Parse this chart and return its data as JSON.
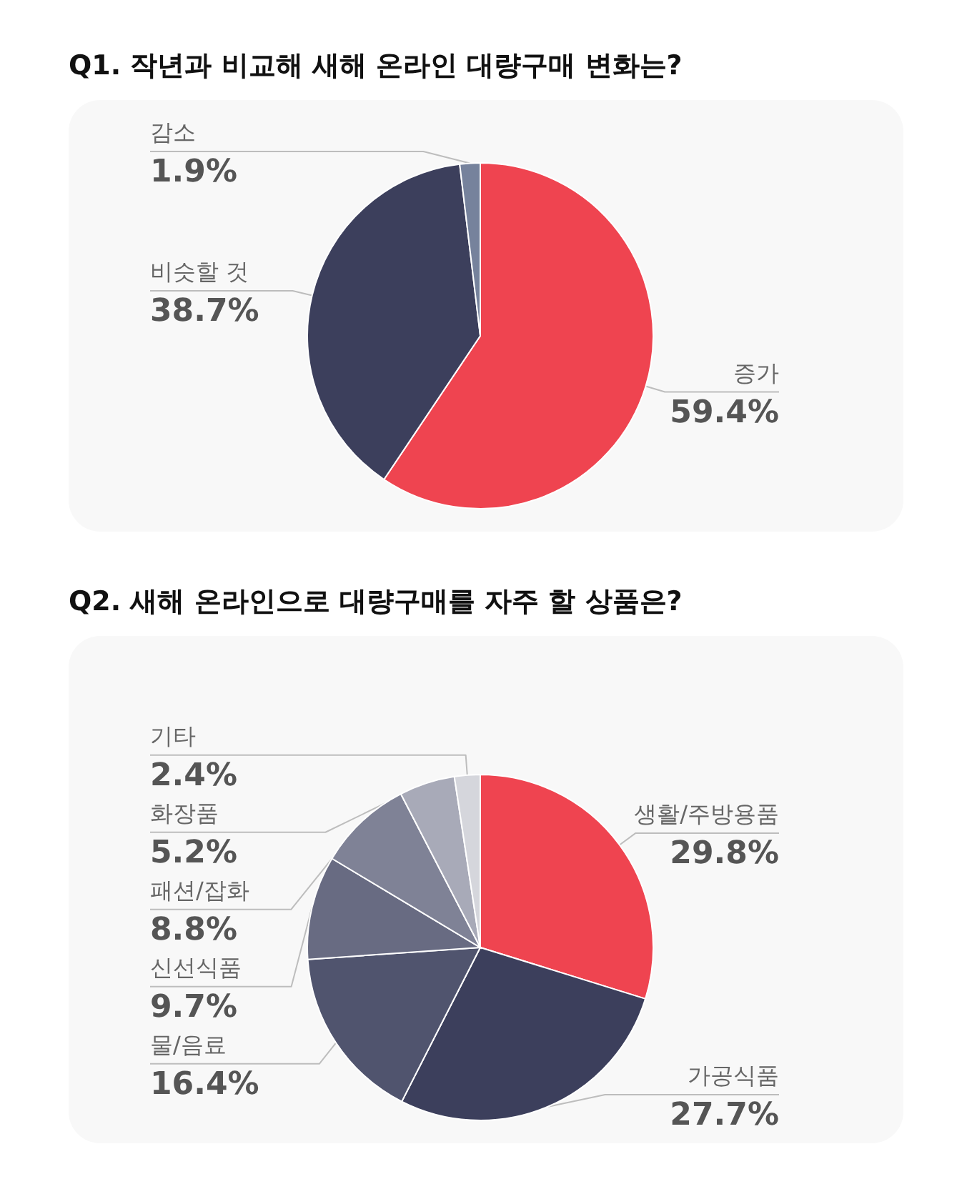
{
  "chart_data": [
    {
      "type": "pie",
      "title": "Q1. 작년과 비교해 새해 온라인 대량구매 변화는?",
      "categories": [
        "증가",
        "비슷할 것",
        "감소"
      ],
      "values": [
        59.4,
        38.7,
        1.9
      ],
      "value_labels": [
        "59.4%",
        "38.7%",
        "1.9%"
      ],
      "colors": [
        "#ef4450",
        "#3c3f5c",
        "#76829c"
      ]
    },
    {
      "type": "pie",
      "title": "Q2. 새해 온라인으로 대량구매를 자주 할 상품은?",
      "categories": [
        "생활/주방용품",
        "가공식품",
        "물/음료",
        "신선식품",
        "패션/잡화",
        "화장품",
        "기타"
      ],
      "values": [
        29.8,
        27.7,
        16.4,
        9.7,
        8.8,
        5.2,
        2.4
      ],
      "value_labels": [
        "29.8%",
        "27.7%",
        "16.4%",
        "9.7%",
        "8.8%",
        "5.2%",
        "2.4%"
      ],
      "colors": [
        "#ef4450",
        "#3c3f5c",
        "#50546e",
        "#686b82",
        "#7f8296",
        "#a8aab8",
        "#d5d6dc"
      ]
    }
  ]
}
